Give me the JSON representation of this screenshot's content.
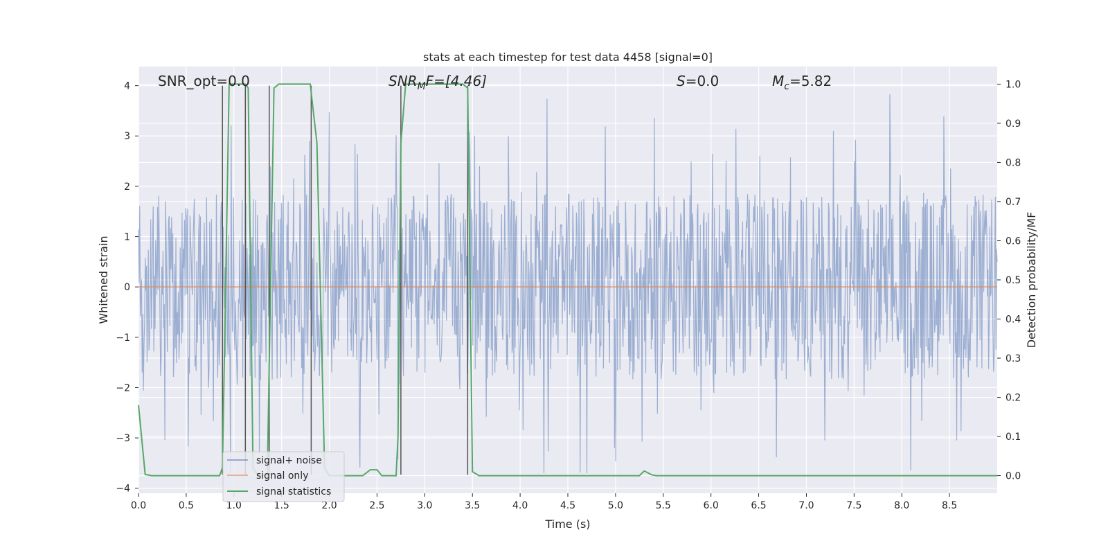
{
  "chart_data": {
    "type": "line",
    "title": "stats at each timestep for test data 4458 [signal=0]",
    "xlabel": "Time (s)",
    "ylabel_left": "Whitened strain",
    "ylabel_right": "Detection probability/MF",
    "xlim": [
      0,
      9.0
    ],
    "ylim_left": [
      -4.1,
      4.38
    ],
    "ylim_right": [
      -0.045,
      1.045
    ],
    "x_ticks": [
      0.0,
      0.5,
      1.0,
      1.5,
      2.0,
      2.5,
      3.0,
      3.5,
      4.0,
      4.5,
      5.0,
      5.5,
      6.0,
      6.5,
      7.0,
      7.5,
      8.0,
      8.5
    ],
    "x_tick_labels": [
      "0.0",
      "0.5",
      "1.0",
      "1.5",
      "2.0",
      "2.5",
      "3.0",
      "3.5",
      "4.0",
      "4.5",
      "5.0",
      "5.5",
      "6.0",
      "6.5",
      "7.0",
      "7.5",
      "8.0",
      "8.5"
    ],
    "y_ticks_left": [
      4,
      3,
      2,
      1,
      0,
      -1,
      -2,
      -3,
      -4
    ],
    "y_tick_labels_left": [
      "4",
      "3",
      "2",
      "1",
      "0",
      "−1",
      "−2",
      "−3",
      "−4"
    ],
    "y_ticks_right": [
      1.0,
      0.9,
      0.8,
      0.7,
      0.6,
      0.5,
      0.4,
      0.3,
      0.2,
      0.1,
      0.0
    ],
    "y_tick_labels_right": [
      "1.0",
      "0.9",
      "0.8",
      "0.7",
      "0.6",
      "0.5",
      "0.4",
      "0.3",
      "0.2",
      "0.1",
      "0.0"
    ],
    "grid": true,
    "legend_placement": "lower-left",
    "annotations": {
      "snr_opt": "SNR_opt=0.0",
      "snr_mf_main": "SNR",
      "snr_mf_sub": "M",
      "snr_mf_rest": "F=[4.46]",
      "s_var": "S",
      "s_rest": "=0.0",
      "mc_var": "M",
      "mc_sub": "c",
      "mc_rest": "=5.82"
    },
    "series": [
      {
        "name": "signal+ noise",
        "color": "#4c72b0",
        "axis": "left",
        "kind": "noise",
        "envelope": {
          "low_typical": -1.7,
          "high_typical": 1.7,
          "extremes": [
            -3.7,
            4.0
          ]
        }
      },
      {
        "name": "signal only",
        "color": "#dd8452",
        "axis": "left",
        "x": [
          0.0,
          9.0
        ],
        "y": [
          0.0,
          0.0
        ]
      },
      {
        "name": "signal statistics",
        "color": "#55a868",
        "axis": "right",
        "x": [
          0.0,
          0.07,
          0.14,
          0.85,
          0.88,
          0.95,
          1.12,
          1.15,
          1.2,
          1.25,
          1.35,
          1.42,
          1.47,
          1.8,
          1.87,
          1.95,
          2.0,
          2.3,
          2.35,
          2.43,
          2.5,
          2.55,
          2.63,
          2.7,
          2.72,
          2.75,
          2.8,
          3.4,
          3.45,
          3.5,
          3.57,
          5.25,
          5.3,
          5.38,
          5.43,
          9.0
        ],
        "y": [
          0.18,
          0.003,
          0.0,
          0.0,
          0.02,
          1.0,
          1.0,
          0.99,
          0.02,
          0.0,
          0.0,
          0.99,
          1.0,
          1.0,
          0.85,
          0.02,
          0.0,
          0.0,
          0.0,
          0.015,
          0.015,
          0.0,
          0.0,
          0.0,
          0.1,
          0.85,
          1.0,
          1.0,
          0.99,
          0.01,
          0.0,
          0.0,
          0.012,
          0.002,
          0.0,
          0.0
        ]
      }
    ],
    "event_markers": {
      "color": "#555555",
      "x": [
        0.88,
        1.12,
        1.37,
        1.81,
        2.75,
        3.45
      ],
      "y_range": [
        -3.73,
        4.0
      ]
    }
  }
}
